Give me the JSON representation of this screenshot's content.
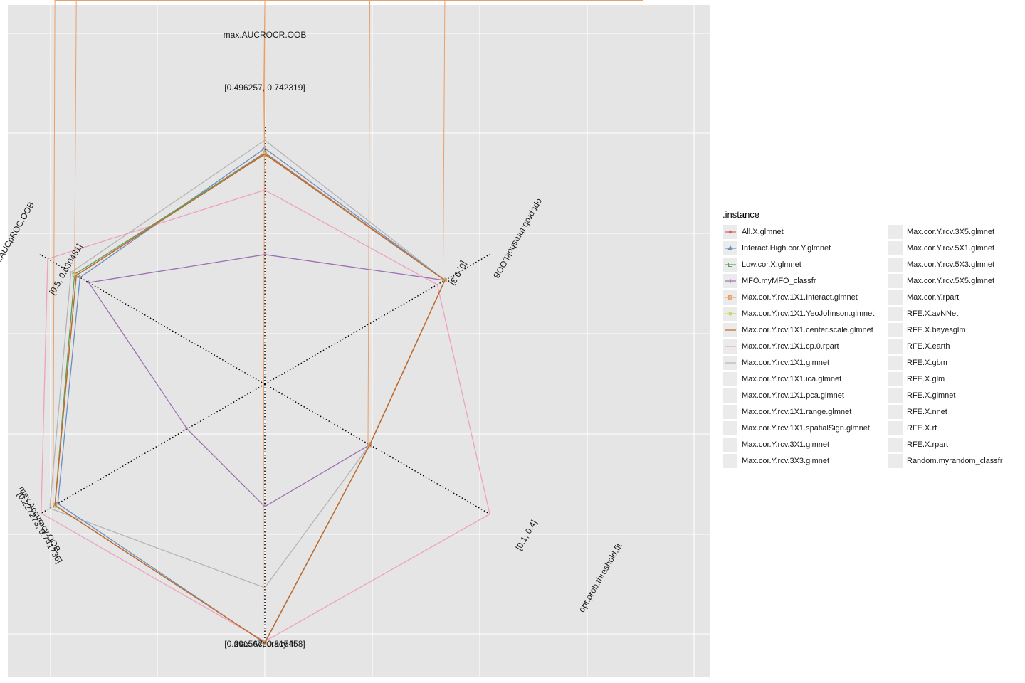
{
  "chart_data": {
    "type": "radar",
    "axes": [
      {
        "name": "max.AUCROCR.OOB",
        "range_label": "[0.496257, 0.742319]",
        "min": 0.496257,
        "max": 0.742319
      },
      {
        "name": "opt.prob.threshold.OOB",
        "range_label": "[0, 0.3]",
        "min": 0,
        "max": 0.3
      },
      {
        "name": "opt.prob.threshold.fit",
        "range_label": "[0.1, 0.4]",
        "min": 0.1,
        "max": 0.4
      },
      {
        "name": "max.Accuracy.fit",
        "range_label": "[0.201567, 0.815458]",
        "min": 0.201567,
        "max": 0.815458
      },
      {
        "name": "max.Accuracy.OOB",
        "range_label": "[0.227273, 0.741736]",
        "min": 0.227273,
        "max": 0.741736
      },
      {
        "name": "max.AUCpROC.OOB",
        "range_label": "[0.5, 0.630481]",
        "min": 0.5,
        "max": 0.630481
      }
    ],
    "series": [
      {
        "name": "All.X.glmnet",
        "color": "#d6616b",
        "marker": "circle",
        "values": [
          0.7156,
          0.24,
          0.24,
          0.8124,
          0.7073,
          0.6093
        ]
      },
      {
        "name": "Interact.High.cor.Y.glmnet",
        "color": "#6b8fbf",
        "marker": "triangle",
        "values": [
          0.7197,
          0.24,
          0.24,
          0.8137,
          0.7006,
          0.6072
        ]
      },
      {
        "name": "Low.cor.X.glmnet",
        "color": "#5aa05a",
        "marker": "square",
        "values": [
          0.7148,
          0.24,
          0.24,
          0.8124,
          0.7073,
          0.6103
        ]
      },
      {
        "name": "MFO.myMFO_classfr",
        "color": "#9e6db3",
        "marker": "plus",
        "values": [
          0.6191,
          0.24,
          0.24,
          0.4911,
          0.4049,
          0.6021
        ]
      },
      {
        "name": "Max.cor.Y.rcv.1X1.Interact.glmnet",
        "color": "#e8a06a",
        "marker": "boxcross",
        "values": [
          0.7142,
          0.24,
          0.24,
          0.8124,
          0.7073,
          0.6093
        ]
      },
      {
        "name": "Max.cor.Y.rcv.1X1.YeoJohnson.glmnet",
        "color": "#c8d35a",
        "marker": "asterisk",
        "values": [
          0.7142,
          0.24,
          0.24,
          0.8124,
          0.7073,
          0.6093
        ]
      },
      {
        "name": "Max.cor.Y.rcv.1X1.center.scale.glmnet",
        "color": "#c0652e",
        "marker": "none",
        "values": [
          0.7142,
          0.24,
          0.24,
          0.8124,
          0.7073,
          0.6093
        ]
      },
      {
        "name": "Max.cor.Y.rcv.1X1.cp.0.rpart",
        "color": "#f0a0c0",
        "marker": "none",
        "values": [
          0.6802,
          0.23,
          0.4,
          0.8096,
          0.7386,
          0.6259
        ]
      },
      {
        "name": "Max.cor.Y.rcv.1X1.glmnet",
        "color": "#b4b4b4",
        "marker": "none",
        "values": [
          0.7275,
          0.24,
          0.24,
          0.6826,
          0.7188,
          0.6124
        ]
      }
    ],
    "legend_title": ".instance",
    "legend_items": [
      "All.X.glmnet",
      "Interact.High.cor.Y.glmnet",
      "Low.cor.X.glmnet",
      "MFO.myMFO_classfr",
      "Max.cor.Y.rcv.1X1.Interact.glmnet",
      "Max.cor.Y.rcv.1X1.YeoJohnson.glmnet",
      "Max.cor.Y.rcv.1X1.center.scale.glmnet",
      "Max.cor.Y.rcv.1X1.cp.0.rpart",
      "Max.cor.Y.rcv.1X1.glmnet",
      "Max.cor.Y.rcv.1X1.ica.glmnet",
      "Max.cor.Y.rcv.1X1.pca.glmnet",
      "Max.cor.Y.rcv.1X1.range.glmnet",
      "Max.cor.Y.rcv.1X1.spatialSign.glmnet",
      "Max.cor.Y.rcv.3X1.glmnet",
      "Max.cor.Y.rcv.3X3.glmnet",
      "Max.cor.Y.rcv.3X5.glmnet",
      "Max.cor.Y.rcv.5X1.glmnet",
      "Max.cor.Y.rcv.5X3.glmnet",
      "Max.cor.Y.rcv.5X5.glmnet",
      "Max.cor.Y.rpart",
      "RFE.X.avNNet",
      "RFE.X.bayesglm",
      "RFE.X.earth",
      "RFE.X.gbm",
      "RFE.X.glm",
      "RFE.X.glmnet",
      "RFE.X.nnet",
      "RFE.X.rf",
      "RFE.X.rpart",
      "Random.myrandom_classfr"
    ],
    "legend_position": "right",
    "panel_background": "#e5e5e5",
    "grid": true
  }
}
